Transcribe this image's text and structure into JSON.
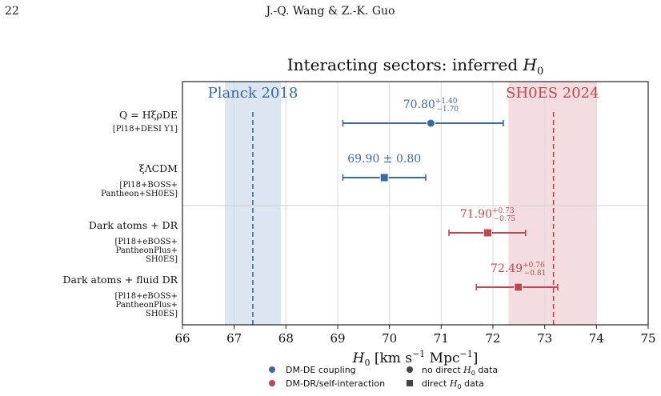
{
  "header": {
    "page_number": "22",
    "running_head": "J.-Q. Wang & Z.-K. Guo"
  },
  "chart_data": {
    "type": "scatter",
    "title": "Interacting sectors: inferred",
    "title_var": "H",
    "title_sub": "0",
    "xlabel": "H0 [km s−1 Mpc−1]",
    "xlim": [
      66,
      75
    ],
    "xticks": [
      66,
      67,
      68,
      69,
      70,
      71,
      72,
      73,
      74,
      75
    ],
    "grid": true,
    "colors": {
      "dm_de": "#3a6aa5",
      "dm_dr": "#c0474e",
      "planck_band": "#dce6f1",
      "shoes_band": "#f3dde0"
    },
    "bands": [
      {
        "name": "Planck 2018",
        "center": 67.36,
        "low": 66.82,
        "high": 67.9,
        "color_key": "planck"
      },
      {
        "name": "SH0ES 2024",
        "center": 73.17,
        "low": 72.3,
        "high": 74.0,
        "color_key": "shoes"
      }
    ],
    "points": [
      {
        "model": "Q = HξρDE",
        "dataset": [
          "[Pl18+DESI Y1]"
        ],
        "value": 70.8,
        "err_plus": 1.4,
        "err_minus": 1.7,
        "label_main": "70.80",
        "label_sup": "+1.40",
        "label_sub": "−1.70",
        "family": "DM-DE coupling",
        "marker": "circle"
      },
      {
        "model": "ξΛCDM",
        "dataset": [
          "[Pl18+BOSS+",
          "Pantheon+SH0ES]"
        ],
        "value": 69.9,
        "err_plus": 0.8,
        "err_minus": 0.8,
        "label_main": "69.90 ± 0.80",
        "label_sup": "",
        "label_sub": "",
        "family": "DM-DE coupling",
        "marker": "square"
      },
      {
        "model": "Dark atoms + DR",
        "dataset": [
          "[Pl18+eBOSS+",
          "PantheonPlus+",
          "SH0ES]"
        ],
        "value": 71.9,
        "err_plus": 0.73,
        "err_minus": 0.75,
        "label_main": "71.90",
        "label_sup": "+0.73",
        "label_sub": "−0.75",
        "family": "DM-DR/self-interaction",
        "marker": "square"
      },
      {
        "model": "Dark atoms + fluid DR",
        "dataset": [
          "[Pl18+eBOSS+",
          "PantheonPlus+",
          "SH0ES]"
        ],
        "value": 72.49,
        "err_plus": 0.76,
        "err_minus": 0.81,
        "label_main": "72.49",
        "label_sup": "+0.76",
        "label_sub": "−0.81",
        "family": "DM-DR/self-interaction",
        "marker": "square"
      }
    ],
    "legend": [
      {
        "label": "DM-DE coupling",
        "kind": "color",
        "color_key": "dm_de"
      },
      {
        "label": "no direct H0 data",
        "kind": "circle"
      },
      {
        "label": "DM-DR/self-interaction",
        "kind": "color",
        "color_key": "dm_dr"
      },
      {
        "label": "direct H0 data",
        "kind": "square"
      }
    ],
    "legend_position": "bottom-center"
  }
}
